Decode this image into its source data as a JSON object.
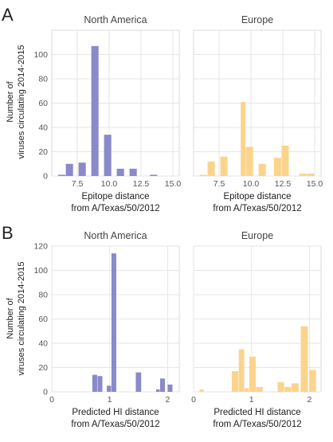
{
  "colors": {
    "north_america": "#8a89c9",
    "europe": "#fbd48c",
    "grid": "#e6e6e6",
    "axis_text": "#555555",
    "title_text": "#444444"
  },
  "figure": {
    "panel_labels": [
      "A",
      "B"
    ],
    "shared_ylabel_line1": "Number of",
    "shared_ylabel_line2": "viruses circulating 2014-2015"
  },
  "chart_data": [
    {
      "type": "bar",
      "panel": "A",
      "title": "North America",
      "xlabel_line1": "Epitope distance",
      "xlabel_line2": "from A/Texas/50/2012",
      "ylabel": "Number of viruses circulating 2014-2015",
      "xlim": [
        5.5,
        15.5
      ],
      "ylim": [
        0,
        120
      ],
      "xticks": [
        7.5,
        10.0,
        12.5,
        15.0
      ],
      "xtick_labels": [
        "7.5",
        "10.0",
        "12.5",
        "15.0"
      ],
      "yticks": [
        0,
        20,
        40,
        60,
        80,
        100
      ],
      "ytick_labels": [
        "0",
        "20",
        "40",
        "60",
        "80",
        "100"
      ],
      "grid": true,
      "color": "north_america",
      "bins": [
        {
          "x0": 6.0,
          "x1": 6.6,
          "value": 1
        },
        {
          "x0": 6.6,
          "x1": 7.2,
          "value": 10
        },
        {
          "x0": 7.6,
          "x1": 8.2,
          "value": 11
        },
        {
          "x0": 8.6,
          "x1": 9.2,
          "value": 107
        },
        {
          "x0": 9.6,
          "x1": 10.2,
          "value": 34
        },
        {
          "x0": 10.6,
          "x1": 11.2,
          "value": 6
        },
        {
          "x0": 11.6,
          "x1": 12.2,
          "value": 6
        },
        {
          "x0": 13.2,
          "x1": 13.8,
          "value": 1
        }
      ]
    },
    {
      "type": "bar",
      "panel": "A",
      "title": "Europe",
      "xlabel_line1": "Epitope distance",
      "xlabel_line2": "from A/Texas/50/2012",
      "xlim": [
        5.5,
        15.5
      ],
      "ylim": [
        0,
        120
      ],
      "xticks": [
        7.5,
        10.0,
        12.5,
        15.0
      ],
      "xtick_labels": [
        "7.5",
        "10.0",
        "12.5",
        "15.0"
      ],
      "yticks": [
        0,
        20,
        40,
        60,
        80,
        100
      ],
      "grid": true,
      "color": "europe",
      "bins": [
        {
          "x0": 6.0,
          "x1": 6.6,
          "value": 1
        },
        {
          "x0": 6.6,
          "x1": 7.2,
          "value": 12
        },
        {
          "x0": 7.6,
          "x1": 8.2,
          "value": 16
        },
        {
          "x0": 9.2,
          "x1": 9.6,
          "value": 61
        },
        {
          "x0": 9.6,
          "x1": 10.2,
          "value": 24
        },
        {
          "x0": 10.6,
          "x1": 11.2,
          "value": 10
        },
        {
          "x0": 11.8,
          "x1": 12.4,
          "value": 15
        },
        {
          "x0": 12.4,
          "x1": 13.0,
          "value": 25
        },
        {
          "x0": 13.8,
          "x1": 14.4,
          "value": 2
        },
        {
          "x0": 14.4,
          "x1": 15.0,
          "value": 2
        }
      ]
    },
    {
      "type": "bar",
      "panel": "B",
      "title": "North America",
      "xlabel_line1": "Predicted HI distance",
      "xlabel_line2": "from A/Texas/50/2012",
      "ylabel": "Number of viruses circulating 2014-2015",
      "xlim": [
        0,
        2.2
      ],
      "ylim": [
        0,
        120
      ],
      "xticks": [
        0,
        1,
        2
      ],
      "xtick_labels": [
        "0",
        "1",
        "2"
      ],
      "yticks": [
        0,
        20,
        40,
        60,
        80,
        100,
        120
      ],
      "ytick_labels": [
        "0",
        "20",
        "40",
        "60",
        "80",
        "100",
        "120"
      ],
      "grid": true,
      "color": "north_america",
      "bins": [
        {
          "x0": 0.7,
          "x1": 0.79,
          "value": 14
        },
        {
          "x0": 0.79,
          "x1": 0.88,
          "value": 13
        },
        {
          "x0": 0.95,
          "x1": 1.03,
          "value": 5
        },
        {
          "x0": 1.03,
          "x1": 1.12,
          "value": 114
        },
        {
          "x0": 1.45,
          "x1": 1.55,
          "value": 16
        },
        {
          "x0": 1.8,
          "x1": 1.87,
          "value": 2
        },
        {
          "x0": 1.87,
          "x1": 1.96,
          "value": 11
        },
        {
          "x0": 2.0,
          "x1": 2.09,
          "value": 6
        }
      ]
    },
    {
      "type": "bar",
      "panel": "B",
      "title": "Europe",
      "xlabel_line1": "Predicted HI distance",
      "xlabel_line2": "from A/Texas/50/2012",
      "xlim": [
        0,
        2.2
      ],
      "ylim": [
        0,
        120
      ],
      "xticks": [
        0,
        1,
        2
      ],
      "xtick_labels": [
        "0",
        "1",
        "2"
      ],
      "yticks": [
        0,
        20,
        40,
        60,
        80,
        100,
        120
      ],
      "grid": true,
      "color": "europe",
      "bins": [
        {
          "x0": 0.1,
          "x1": 0.18,
          "value": 2
        },
        {
          "x0": 0.66,
          "x1": 0.78,
          "value": 17
        },
        {
          "x0": 0.78,
          "x1": 0.88,
          "value": 35
        },
        {
          "x0": 0.88,
          "x1": 0.96,
          "value": 3
        },
        {
          "x0": 0.96,
          "x1": 1.08,
          "value": 29
        },
        {
          "x0": 1.08,
          "x1": 1.2,
          "value": 4
        },
        {
          "x0": 1.45,
          "x1": 1.57,
          "value": 8
        },
        {
          "x0": 1.57,
          "x1": 1.69,
          "value": 4
        },
        {
          "x0": 1.69,
          "x1": 1.82,
          "value": 7
        },
        {
          "x0": 1.85,
          "x1": 1.98,
          "value": 54
        },
        {
          "x0": 2.0,
          "x1": 2.12,
          "value": 18
        }
      ]
    }
  ]
}
